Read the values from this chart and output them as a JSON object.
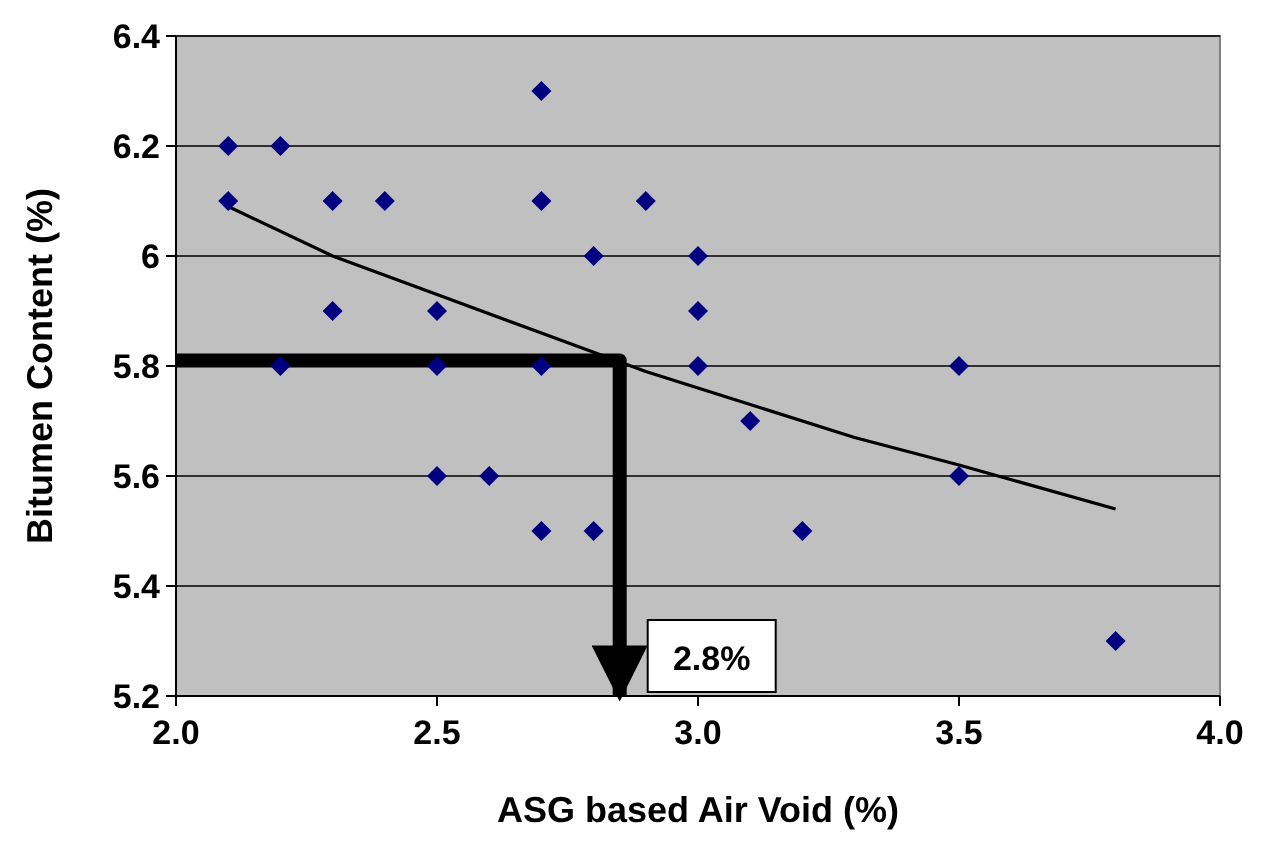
{
  "chart_data": {
    "type": "scatter",
    "xlabel": "ASG based Air Void (%)",
    "ylabel": "Bitumen Content (%)",
    "xlim": [
      2.0,
      4.0
    ],
    "xticks": [
      {
        "value": 2,
        "label": "2.0"
      },
      {
        "value": 2.5,
        "label": "2.5"
      },
      {
        "value": 3,
        "label": "3.0"
      },
      {
        "value": 3.5,
        "label": "3.5"
      },
      {
        "value": 4,
        "label": "4.0"
      }
    ],
    "ylim": [
      5.2,
      6.4
    ],
    "yticks": [
      5.2,
      5.4,
      5.6,
      5.8,
      6,
      6.2,
      6.4
    ],
    "grid": "y",
    "series": [
      {
        "color": "#000080",
        "marker": "diamond",
        "x": [
          2.1,
          2.2,
          2.1,
          2.3,
          2.4,
          2.3,
          2.5,
          2.2,
          2.5,
          2.5,
          2.6,
          2.7,
          2.7,
          2.7,
          2.7,
          2.8,
          2.8,
          2.9,
          3.0,
          3.0,
          3.0,
          3.1,
          3.2,
          3.5,
          3.5,
          3.8
        ],
        "values": [
          6.2,
          6.2,
          6.1,
          6.1,
          6.1,
          5.9,
          5.9,
          5.8,
          5.8,
          5.6,
          5.6,
          6.3,
          6.1,
          5.8,
          5.5,
          6.0,
          5.5,
          6.1,
          6.0,
          5.9,
          5.8,
          5.7,
          5.5,
          5.8,
          5.6,
          5.3
        ]
      },
      {
        "type": "line",
        "color": "#000000",
        "marker": "none",
        "x": [
          2.1,
          2.3,
          2.5,
          2.7,
          2.9,
          3.1,
          3.3,
          3.5,
          3.8
        ],
        "values": [
          6.09,
          6.0,
          5.93,
          5.86,
          5.79,
          5.73,
          5.67,
          5.62,
          5.54
        ]
      },
      {
        "type": "line",
        "color": "#000000",
        "marker": "none",
        "x": [
          2.0,
          2.85,
          2.85
        ],
        "values": [
          5.81,
          5.81,
          5.2
        ]
      }
    ],
    "annotations": [
      "2.8%"
    ]
  }
}
